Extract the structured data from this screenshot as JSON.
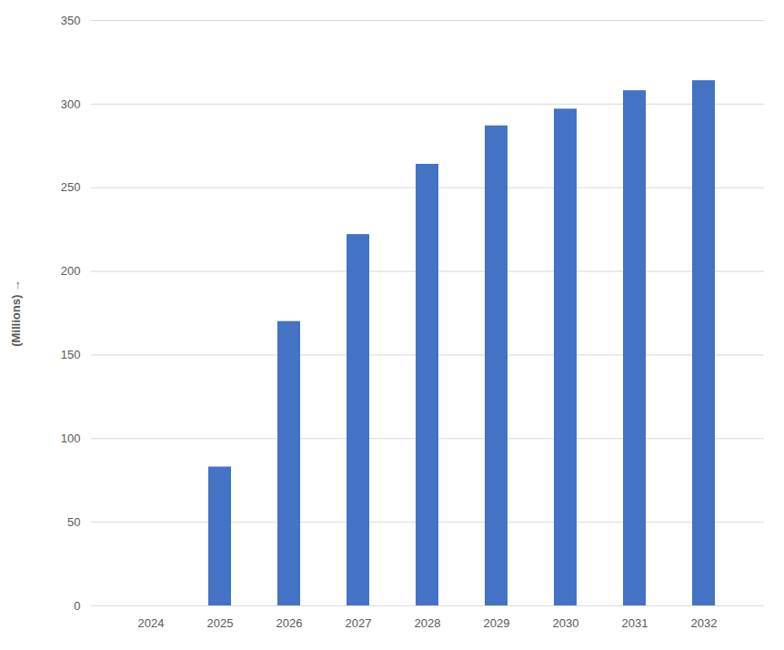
{
  "chart_data": {
    "type": "bar",
    "y_label": "(Millions)",
    "categories": [
      "2024",
      "2025",
      "2026",
      "2027",
      "2028",
      "2029",
      "2030",
      "2031",
      "2032"
    ],
    "values": [
      0,
      83,
      170,
      222,
      264,
      287,
      297,
      308,
      314
    ],
    "color": "#4472c4",
    "ylim": [
      0,
      350
    ],
    "yticks": [
      0,
      50,
      100,
      150,
      200,
      250,
      300,
      350
    ],
    "grid": true
  }
}
